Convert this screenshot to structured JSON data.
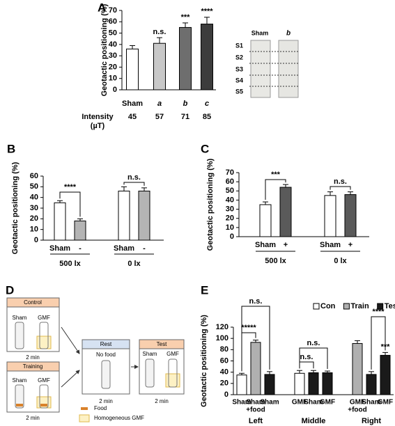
{
  "chart_data": [
    {
      "type": "bar",
      "panel": "A",
      "ylabel": "Geotactic positioning (%)",
      "categories": [
        "Sham",
        "a",
        "b",
        "c"
      ],
      "values": [
        36,
        41,
        55,
        58
      ],
      "errors": [
        3,
        5,
        4,
        6
      ],
      "colors": [
        "#ffffff",
        "#c8c8c8",
        "#6e6e6e",
        "#3c3c3c"
      ],
      "ylim": [
        0,
        70
      ],
      "yticks": [
        0,
        10,
        20,
        30,
        40,
        50,
        60,
        70
      ],
      "annotations": [
        {
          "text": "n.s.",
          "color": "#000000"
        },
        {
          "text": "***",
          "color": "#e31a1c"
        },
        {
          "text": "****",
          "color": "#e31a1c"
        }
      ],
      "intensity": {
        "label": [
          "Intensity",
          "(µT)"
        ],
        "values": [
          45,
          57,
          71,
          85
        ]
      }
    },
    {
      "type": "bar",
      "panel": "B",
      "ylabel": "Geotactic positioning (%)",
      "categories": [
        "Sham",
        "-",
        "Sham",
        "-"
      ],
      "values": [
        35,
        18,
        46,
        46
      ],
      "errors": [
        2,
        2,
        4,
        3
      ],
      "colors": [
        "#ffffff",
        "#b4b4b4",
        "#ffffff",
        "#b4b4b4"
      ],
      "groups": [
        "500 lx",
        "0 lx"
      ],
      "ylim": [
        0,
        60
      ],
      "yticks": [
        0,
        10,
        20,
        30,
        40,
        50,
        60
      ],
      "annotations": [
        {
          "text": "****",
          "color": "#e31a1c"
        },
        {
          "text": "n.s.",
          "color": "#000000"
        }
      ]
    },
    {
      "type": "bar",
      "panel": "C",
      "ylabel": "Geotactic positioning (%)",
      "categories": [
        "Sham",
        "+",
        "Sham",
        "+"
      ],
      "values": [
        35,
        54,
        45,
        46
      ],
      "errors": [
        3,
        3,
        4,
        3
      ],
      "colors": [
        "#ffffff",
        "#5a5a5a",
        "#ffffff",
        "#5a5a5a"
      ],
      "groups": [
        "500 lx",
        "0 lx"
      ],
      "ylim": [
        0,
        70
      ],
      "yticks": [
        0,
        10,
        20,
        30,
        40,
        50,
        60,
        70
      ],
      "annotations": [
        {
          "text": "***",
          "color": "#e31a1c"
        },
        {
          "text": "n.s.",
          "color": "#000000"
        }
      ]
    },
    {
      "type": "bar",
      "panel": "E",
      "ylabel": "Geotactic positioning (%)",
      "categories": [
        [
          "Sham"
        ],
        [
          "Sham",
          "+food"
        ],
        [
          "Sham"
        ],
        [
          "GMF"
        ],
        [
          "Sham"
        ],
        [
          "GMF"
        ],
        [
          "GMF",
          "+food"
        ],
        [
          "Sham"
        ],
        [
          "GMF"
        ]
      ],
      "groups": [
        "Left",
        "Middle",
        "Right"
      ],
      "series": [
        {
          "name": "Con",
          "color": "#ffffff",
          "values": [
            35,
            null,
            null,
            38,
            null,
            null,
            null,
            null,
            null
          ],
          "errors": [
            3,
            null,
            null,
            5,
            null,
            null,
            null,
            null,
            null
          ]
        },
        {
          "name": "Train",
          "color": "#b0b0b0",
          "values": [
            null,
            93,
            null,
            null,
            null,
            null,
            91,
            null,
            null
          ],
          "errors": [
            null,
            4,
            null,
            null,
            null,
            null,
            5,
            null,
            null
          ]
        },
        {
          "name": "Test",
          "color": "#1a1a1a",
          "values": [
            null,
            null,
            36,
            null,
            39,
            39,
            null,
            36,
            70
          ],
          "errors": [
            null,
            null,
            5,
            null,
            4,
            3,
            null,
            5,
            5
          ]
        }
      ],
      "legend": true,
      "ylim": [
        0,
        120
      ],
      "yticks": [
        0,
        20,
        40,
        60,
        80,
        100,
        120
      ],
      "annotations": [
        {
          "text": "n.s.",
          "color": "#000000"
        },
        {
          "text": "*****",
          "color": "#e31a1c"
        },
        {
          "text": "n.s.",
          "color": "#000000"
        },
        {
          "text": "n.s.",
          "color": "#000000"
        },
        {
          "text": "****",
          "color": "#e31a1c"
        },
        {
          "text": "***",
          "color": "#e31a1c"
        }
      ]
    }
  ],
  "photo": {
    "columns": [
      "Sham",
      "b"
    ],
    "rows": [
      "S1",
      "S2",
      "S3",
      "S4",
      "S5"
    ]
  },
  "diagram": {
    "panel": "D",
    "control": {
      "title": "Control",
      "vials": [
        "Sham",
        "GMF"
      ],
      "time": "2 min"
    },
    "training": {
      "title": "Training",
      "vials": [
        "Sham",
        "GMF"
      ],
      "time": "2 min"
    },
    "rest": {
      "title": "Rest",
      "note": "No food",
      "time": "2 min"
    },
    "test": {
      "title": "Test",
      "vials": [
        "Sham",
        "GMF"
      ],
      "time": "2 min"
    },
    "legend": [
      "Food",
      "Homogeneous GMF"
    ]
  }
}
